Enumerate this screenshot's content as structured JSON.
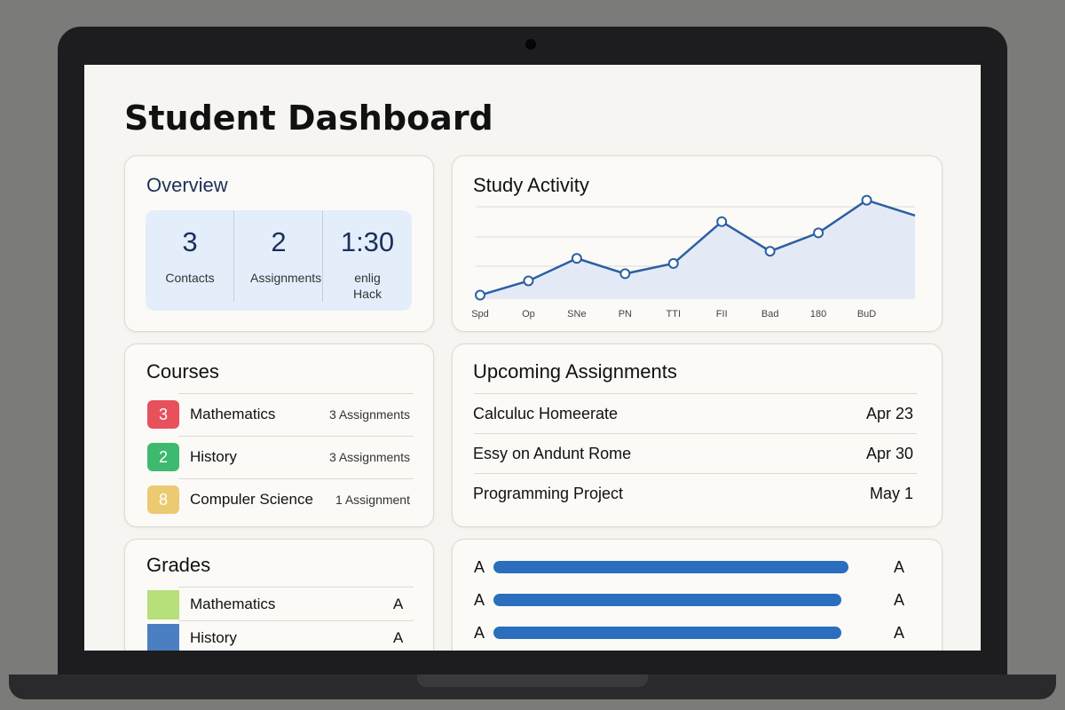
{
  "title": "Student Dashboard",
  "overview": {
    "title": "Overview",
    "stats": [
      {
        "value": 3,
        "label": "Contacts"
      },
      {
        "value": 2,
        "label": "Assignments"
      },
      {
        "value": "1:30",
        "label": "enlig Hack"
      }
    ]
  },
  "courses": {
    "title": "Courses",
    "items": [
      {
        "badge": 3,
        "name": "Mathematics",
        "count": "3 Assignments",
        "color": "#e8505b"
      },
      {
        "badge": 2,
        "name": "History",
        "count": "3 Assignments",
        "color": "#3dba6f"
      },
      {
        "badge": 8,
        "name": "Compuler Science",
        "count": "1 Assignment",
        "color": "#ecca72"
      }
    ]
  },
  "upcoming": {
    "title": "Upcoming Assignments",
    "items": [
      {
        "name": "Calculuc Homeerate",
        "date": "Apr 23"
      },
      {
        "name": "Essy on Andunt Rome",
        "date": "Apr 30"
      },
      {
        "name": "Programming Project",
        "date": "May 1"
      }
    ]
  },
  "grades": {
    "title": "Grades",
    "items": [
      {
        "name": "Mathematics",
        "grade": "A",
        "color": "#b5e07a"
      },
      {
        "name": "History",
        "grade": "A",
        "color": "#4a7fc1"
      }
    ]
  },
  "chart_data": [
    {
      "type": "line",
      "title": "Study Activity",
      "categories": [
        "Spd",
        "Op",
        "SNe",
        "PN",
        "TTI",
        "FII",
        "Bad",
        "180",
        "BuD",
        null
      ],
      "values": [
        3,
        17,
        39,
        24,
        34,
        75,
        46,
        64,
        96,
        81
      ],
      "ylim": [
        0,
        100
      ],
      "color": "#2b5fa3",
      "grid": true
    },
    {
      "type": "bar",
      "orientation": "horizontal",
      "categories": [
        "A",
        "A",
        "A"
      ],
      "right_labels": [
        "A",
        "A",
        "A"
      ],
      "values": [
        100,
        98,
        98
      ],
      "xlim": [
        0,
        100
      ],
      "color": "#2a6ebd"
    }
  ]
}
